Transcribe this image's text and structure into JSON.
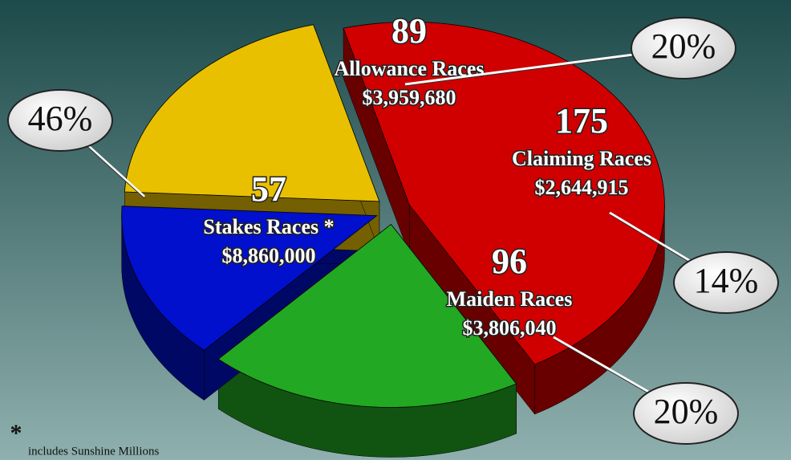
{
  "chart_data": {
    "type": "pie",
    "categories": [
      "Stakes Races *",
      "Allowance Races",
      "Claiming Races",
      "Maiden Races"
    ],
    "values": [
      46,
      20,
      14,
      20
    ],
    "value_labels": [
      "46%",
      "20%",
      "14%",
      "20%"
    ],
    "counts": [
      57,
      89,
      175,
      96
    ],
    "purses": [
      8860000,
      3959680,
      2644915,
      3806040
    ],
    "purse_labels": [
      "$8,860,000",
      "$3,959,680",
      "$2,644,915",
      "$3,806,040"
    ],
    "colors": [
      "#d00000",
      "#22a822",
      "#0010cc",
      "#e8c000"
    ],
    "footnote_marker": "*",
    "footnote": "includes Sunshine Millions"
  }
}
